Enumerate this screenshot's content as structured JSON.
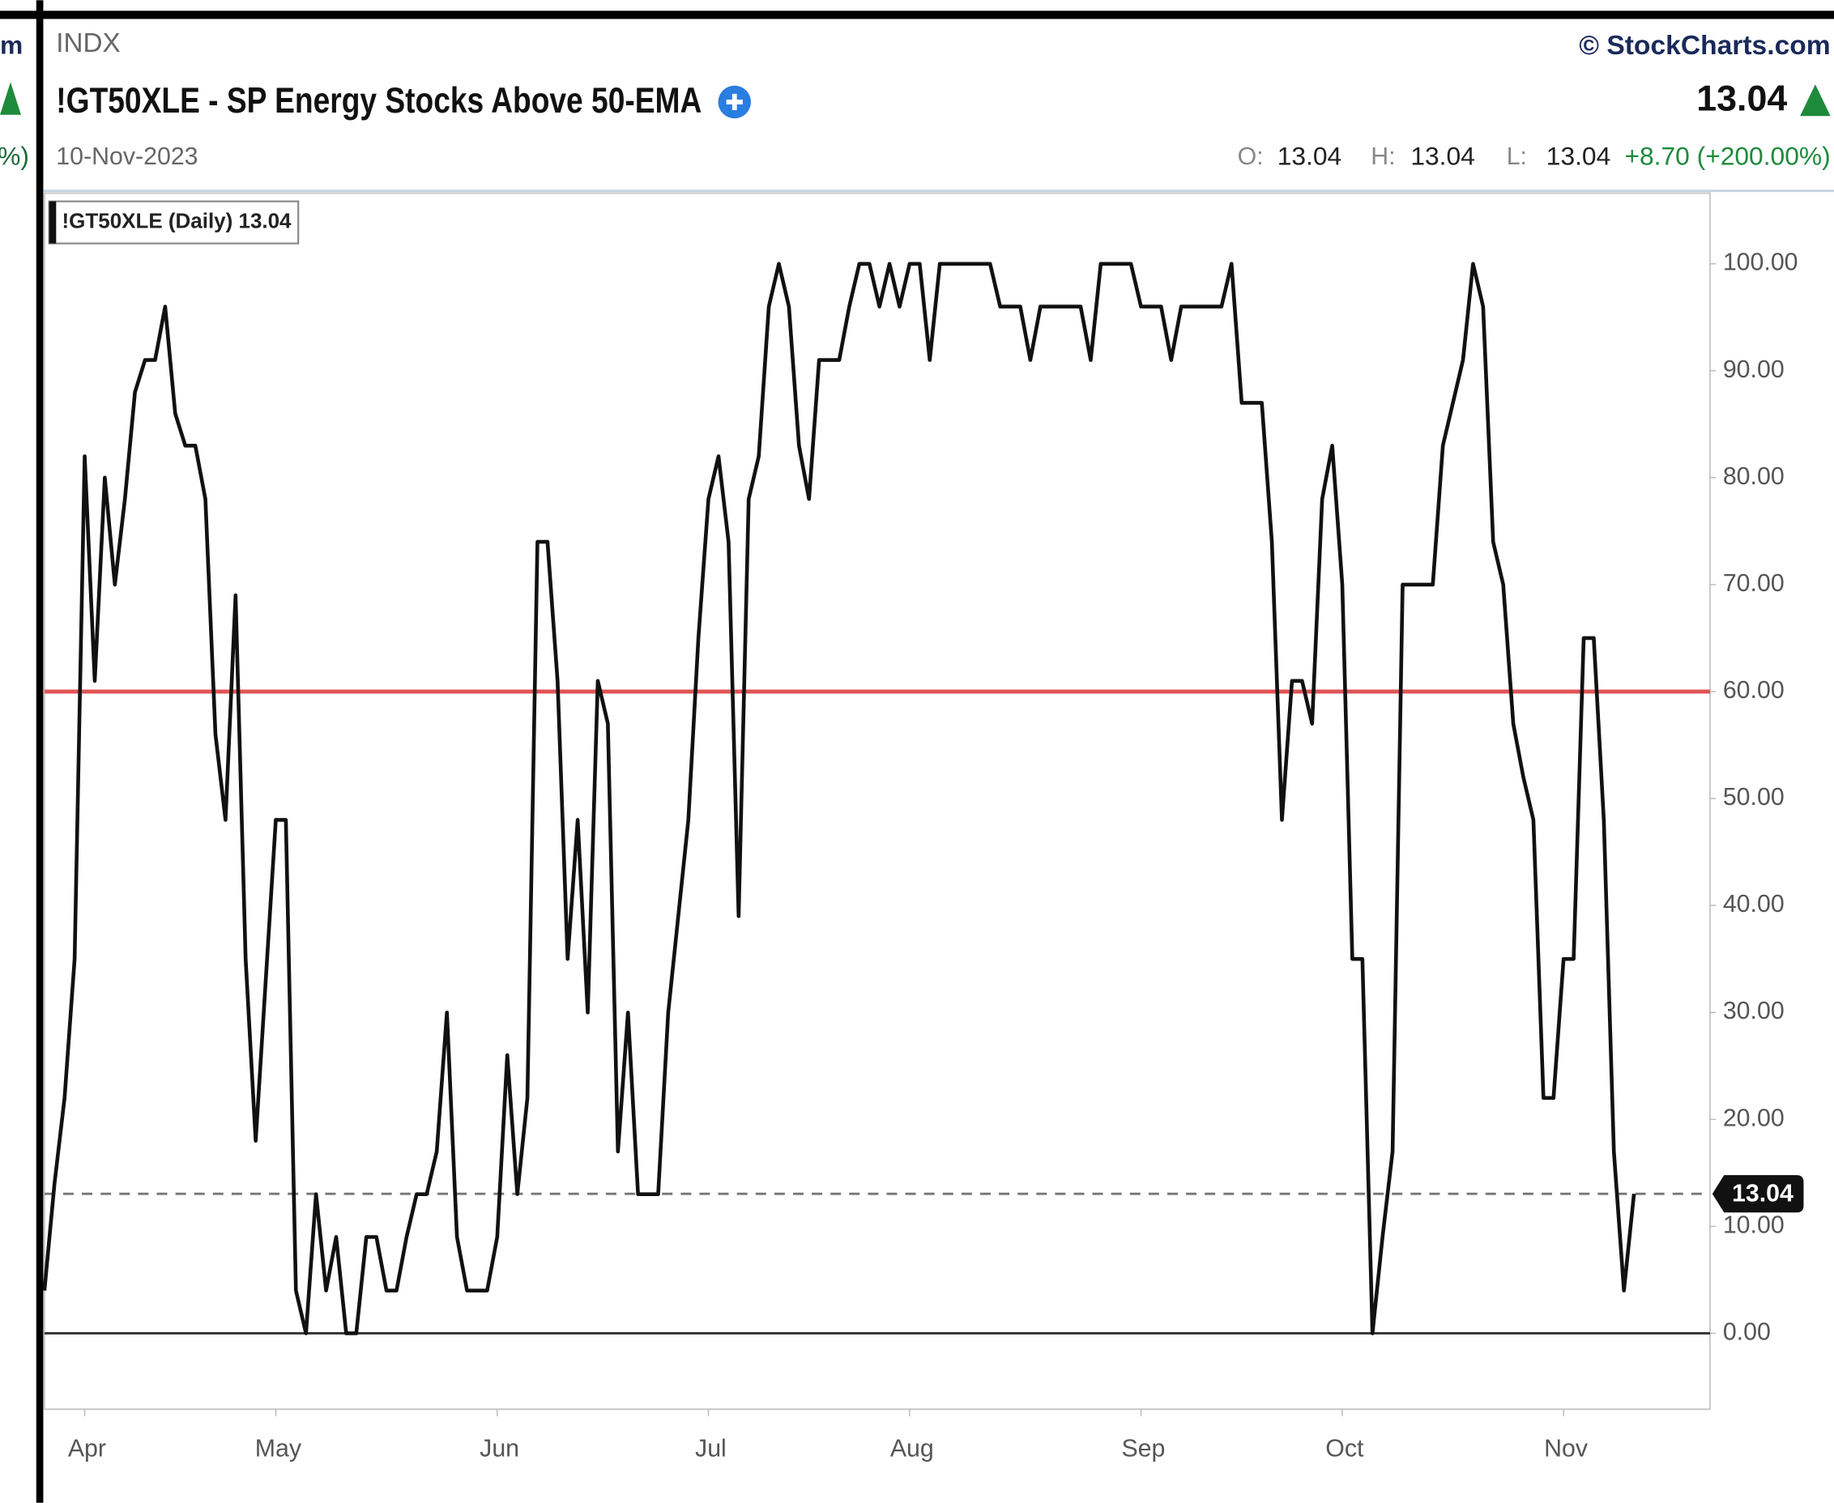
{
  "chart_data": {
    "type": "line",
    "exchange": "INDX",
    "title": "!GT50XLE - SP Energy Stocks Above 50-EMA",
    "date": "10-Nov-2023",
    "brand": "© StockCharts.com",
    "last": 13.04,
    "ohlc": [
      {
        "label": "O:",
        "value": 13.04
      },
      {
        "label": "H:",
        "value": 13.04
      },
      {
        "label": "L:",
        "value": 13.04
      }
    ],
    "change": "+8.70 (+200.00%)",
    "legend": "!GT50XLE (Daily) 13.04",
    "left_fragments": [
      "m",
      "%)"
    ],
    "categories": [
      null,
      null,
      null,
      null,
      "Apr",
      null,
      null,
      null,
      null,
      null,
      null,
      null,
      null,
      null,
      null,
      null,
      null,
      null,
      null,
      null,
      null,
      null,
      null,
      "May",
      null,
      null,
      null,
      null,
      null,
      null,
      null,
      null,
      null,
      null,
      null,
      null,
      null,
      null,
      null,
      null,
      null,
      null,
      null,
      null,
      null,
      "Jun",
      null,
      null,
      null,
      null,
      null,
      null,
      null,
      null,
      null,
      null,
      null,
      null,
      null,
      null,
      null,
      null,
      null,
      null,
      null,
      null,
      "Jul",
      null,
      null,
      null,
      null,
      null,
      null,
      null,
      null,
      null,
      null,
      null,
      null,
      null,
      null,
      null,
      null,
      null,
      null,
      null,
      "Aug",
      null,
      null,
      null,
      null,
      null,
      null,
      null,
      null,
      null,
      null,
      null,
      null,
      null,
      null,
      null,
      null,
      null,
      null,
      null,
      null,
      null,
      null,
      "Sep",
      null,
      null,
      null,
      null,
      null,
      null,
      null,
      null,
      null,
      null,
      null,
      null,
      null,
      null,
      null,
      null,
      null,
      null,
      null,
      "Oct",
      null,
      null,
      null,
      null,
      null,
      null,
      null,
      null,
      null,
      null,
      null,
      null,
      null,
      null,
      null,
      null,
      null,
      null,
      null,
      null,
      null,
      "Nov",
      null,
      null,
      null,
      null,
      null,
      null,
      null
    ],
    "series": [
      {
        "name": "!GT50XLE",
        "color": "#111111",
        "values": [
          4,
          14,
          22,
          35,
          82,
          61,
          80,
          70,
          78,
          88,
          91,
          91,
          96,
          86,
          83,
          83,
          78,
          56,
          48,
          69,
          35,
          18,
          33,
          48,
          48,
          4,
          0,
          13,
          4,
          9,
          0,
          0,
          9,
          9,
          4,
          4,
          9,
          13,
          13,
          17,
          30,
          9,
          4,
          4,
          4,
          9,
          26,
          13,
          22,
          74,
          74,
          61,
          35,
          48,
          30,
          61,
          57,
          17,
          30,
          13,
          13,
          13,
          30,
          39,
          48,
          65,
          78,
          82,
          74,
          39,
          78,
          82,
          96,
          100,
          96,
          83,
          78,
          91,
          91,
          91,
          96,
          100,
          100,
          96,
          100,
          96,
          100,
          100,
          91,
          100,
          100,
          100,
          100,
          100,
          100,
          96,
          96,
          96,
          91,
          96,
          96,
          96,
          96,
          96,
          91,
          100,
          100,
          100,
          100,
          96,
          96,
          96,
          91,
          96,
          96,
          96,
          96,
          96,
          100,
          87,
          87,
          87,
          74,
          48,
          61,
          61,
          57,
          78,
          83,
          70,
          35,
          35,
          0,
          9,
          17,
          70,
          70,
          70,
          70,
          83,
          87,
          91,
          100,
          96,
          74,
          70,
          57,
          52,
          48,
          22,
          22,
          35,
          35,
          65,
          65,
          48,
          17,
          4,
          13.04
        ]
      }
    ],
    "hlines": [
      {
        "value": 60,
        "color": "#e05555",
        "style": "solid"
      },
      {
        "value": 0,
        "color": "#333333",
        "style": "solid"
      }
    ],
    "last_line": {
      "color": "#777777",
      "style": "dashed"
    },
    "ylim": [
      -7.1,
      106.6
    ],
    "yticks": [
      {
        "value": 0,
        "label": "0.00"
      },
      {
        "value": 10,
        "label": "10.00"
      },
      {
        "value": 20,
        "label": "20.00"
      },
      {
        "value": 30,
        "label": "30.00"
      },
      {
        "value": 40,
        "label": "40.00"
      },
      {
        "value": 50,
        "label": "50.00"
      },
      {
        "value": 60,
        "label": "60.00"
      },
      {
        "value": 70,
        "label": "70.00"
      },
      {
        "value": 80,
        "label": "80.00"
      },
      {
        "value": 90,
        "label": "90.00"
      },
      {
        "value": 100,
        "label": "100.00"
      }
    ],
    "axis_side": "right",
    "grid": false
  }
}
